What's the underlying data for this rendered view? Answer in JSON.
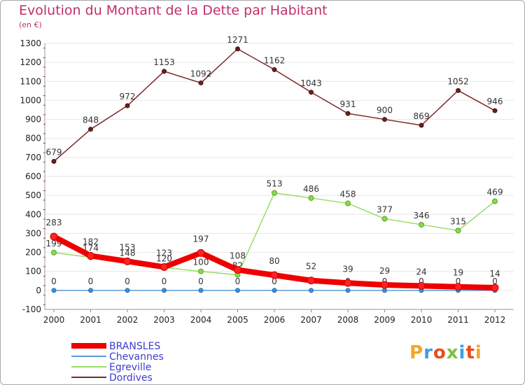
{
  "title": "Evolution du Montant de la Dette par Habitant",
  "subtitle": "(en €)",
  "logo": {
    "text": "Proxiti",
    "colors": [
      "#f5a623",
      "#3aa0e0",
      "#e84e1b",
      "#7cc242",
      "#3aa0e0",
      "#e84e1b",
      "#f5a623"
    ]
  },
  "chart_data": {
    "type": "line",
    "title": "Evolution du Montant de la Dette par Habitant",
    "subtitle": "(en €)",
    "xlabel": "",
    "ylabel": "",
    "categories": [
      "2000",
      "2001",
      "2002",
      "2003",
      "2004",
      "2005",
      "2006",
      "2007",
      "2008",
      "2009",
      "2010",
      "2011",
      "2012"
    ],
    "ylim": [
      -100,
      1300
    ],
    "yticks": [
      -100,
      0,
      100,
      200,
      300,
      400,
      500,
      600,
      700,
      800,
      900,
      1000,
      1100,
      1200,
      1300
    ],
    "legend_position": "bottom-left",
    "series": [
      {
        "name": "BRANSLES",
        "color": "#ee0000",
        "values": [
          283,
          182,
          153,
          123,
          197,
          108,
          80,
          52,
          39,
          29,
          24,
          19,
          14
        ]
      },
      {
        "name": "Chevannes",
        "color": "#5a9bd5",
        "values": [
          0,
          0,
          0,
          0,
          0,
          0,
          0,
          0,
          0,
          0,
          0,
          0,
          0
        ]
      },
      {
        "name": "Egreville",
        "color": "#99dd66",
        "values": [
          199,
          174,
          148,
          120,
          100,
          82,
          513,
          486,
          458,
          377,
          346,
          315,
          469
        ]
      },
      {
        "name": "Dordives",
        "color": "#7a2a2a",
        "values": [
          679,
          848,
          972,
          1153,
          1092,
          1271,
          1162,
          1043,
          931,
          900,
          869,
          1052,
          946
        ]
      }
    ]
  }
}
